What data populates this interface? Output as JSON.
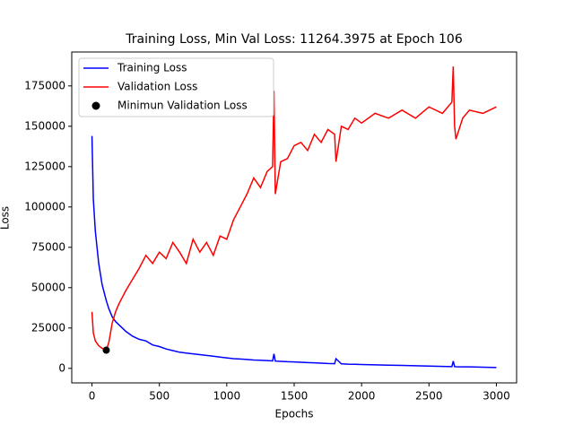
{
  "chart_data": {
    "type": "line",
    "title": "Training Loss, Min Val Loss: 11264.3975 at Epoch 106",
    "xlabel": "Epochs",
    "ylabel": "Loss",
    "x": [
      0,
      10,
      25,
      50,
      75,
      106,
      125,
      150,
      175,
      200,
      250,
      300,
      350,
      400,
      450,
      500,
      550,
      600,
      650,
      700,
      750,
      800,
      850,
      900,
      950,
      1000,
      1050,
      1100,
      1150,
      1200,
      1250,
      1300,
      1340,
      1350,
      1360,
      1400,
      1450,
      1500,
      1550,
      1600,
      1650,
      1700,
      1750,
      1800,
      1810,
      1850,
      1900,
      1950,
      2000,
      2100,
      2200,
      2300,
      2400,
      2500,
      2600,
      2670,
      2680,
      2690,
      2700,
      2750,
      2800,
      2900,
      3000
    ],
    "series": [
      {
        "name": "Training Loss",
        "color": "#0000ff",
        "values": [
          144000,
          105000,
          85000,
          65000,
          52000,
          42000,
          37000,
          32000,
          29000,
          27000,
          23000,
          20000,
          18000,
          17000,
          14500,
          13500,
          12000,
          11000,
          10000,
          9500,
          9000,
          8500,
          8000,
          7500,
          7000,
          6500,
          6000,
          5800,
          5500,
          5200,
          5000,
          4800,
          4600,
          9000,
          4500,
          4300,
          4100,
          4000,
          3800,
          3600,
          3400,
          3200,
          3000,
          2900,
          6000,
          2800,
          2600,
          2500,
          2400,
          2200,
          2000,
          1800,
          1600,
          1400,
          1200,
          1100,
          4500,
          1100,
          1000,
          950,
          900,
          700,
          500
        ]
      },
      {
        "name": "Validation Loss",
        "color": "#ff0000",
        "values": [
          35000,
          22000,
          17000,
          14000,
          12500,
          11264,
          16000,
          28000,
          35000,
          40000,
          48000,
          55000,
          62000,
          70000,
          65000,
          72000,
          68000,
          78000,
          72000,
          65000,
          80000,
          72000,
          78000,
          70000,
          82000,
          80000,
          92000,
          100000,
          108000,
          118000,
          112000,
          122000,
          125000,
          172000,
          108000,
          128000,
          130000,
          138000,
          140000,
          135000,
          145000,
          140000,
          148000,
          145000,
          128000,
          150000,
          148000,
          155000,
          152000,
          158000,
          155000,
          160000,
          155000,
          162000,
          158000,
          165000,
          187000,
          150000,
          142000,
          155000,
          160000,
          158000,
          162000
        ]
      },
      {
        "name": "Minimun Validation Loss",
        "type": "scatter",
        "color": "#000000",
        "x": [
          106
        ],
        "values": [
          11264.3975
        ]
      }
    ],
    "xlim": [
      -150,
      3150
    ],
    "xticks": [
      0,
      500,
      1000,
      1500,
      2000,
      2500,
      3000
    ],
    "ylim": [
      -9000,
      196000
    ],
    "yticks": [
      0,
      25000,
      50000,
      75000,
      100000,
      125000,
      150000,
      175000
    ],
    "legend": "upper left",
    "grid": false
  }
}
